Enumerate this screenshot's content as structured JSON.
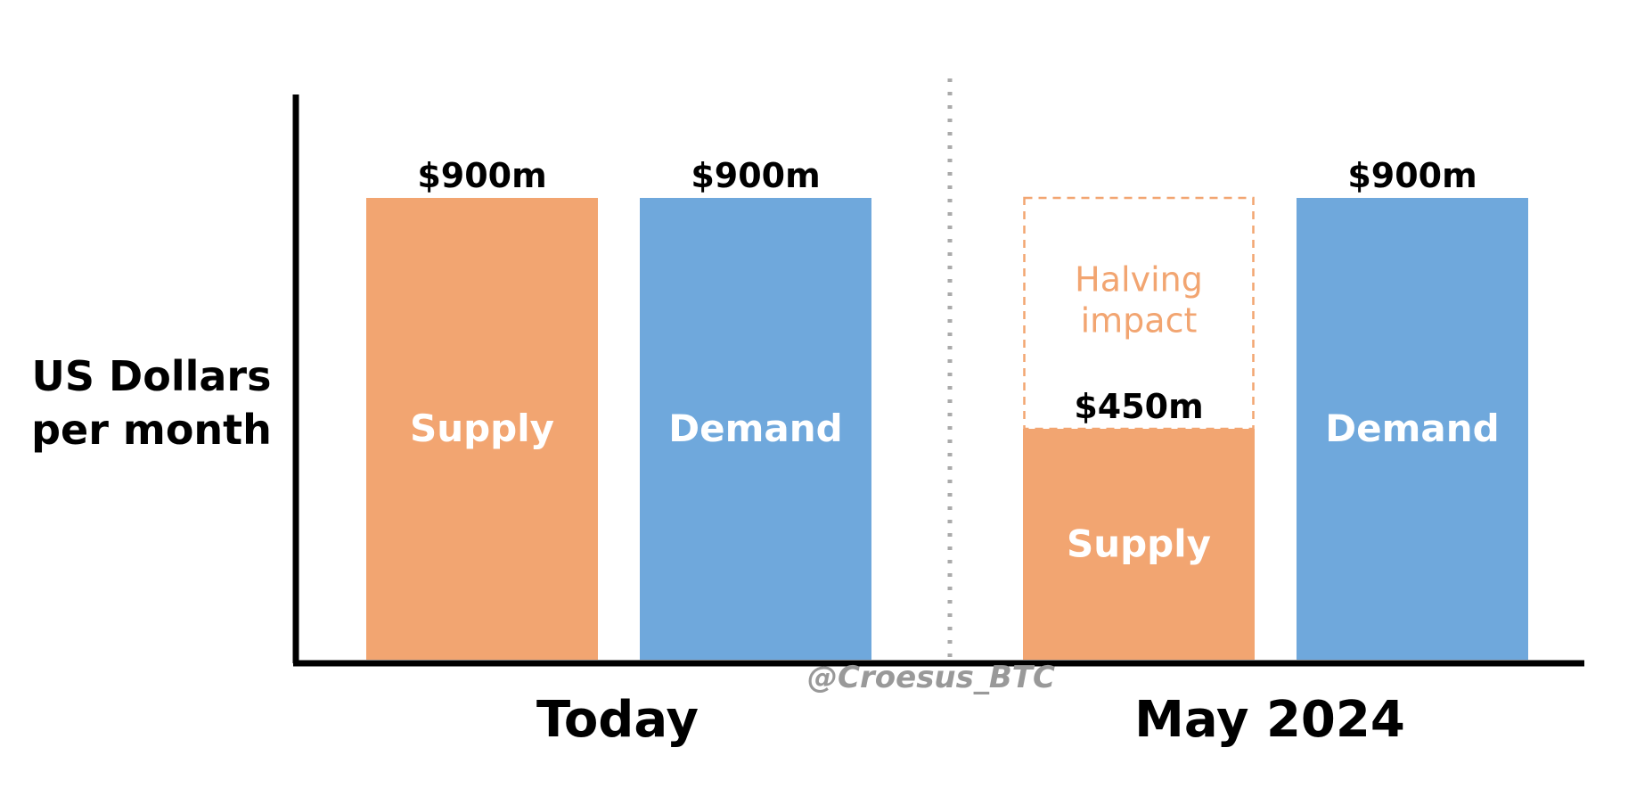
{
  "chart_data": {
    "type": "bar",
    "ylabel_lines": [
      "US Dollars",
      "per month"
    ],
    "categories": [
      "Today",
      "May 2024"
    ],
    "bars": [
      {
        "group": "Today",
        "label": "Supply",
        "value": 900,
        "value_label": "$900m",
        "color": "#F2A571"
      },
      {
        "group": "Today",
        "label": "Demand",
        "value": 900,
        "value_label": "$900m",
        "color": "#6FA8DC"
      },
      {
        "group": "May 2024",
        "label": "Supply",
        "value": 450,
        "value_label": "$450m",
        "color": "#F2A571",
        "annotation": {
          "text_lines": [
            "Halving",
            "impact"
          ],
          "value": 900,
          "color": "#F2A571"
        }
      },
      {
        "group": "May 2024",
        "label": "Demand",
        "value": 900,
        "value_label": "$900m",
        "color": "#6FA8DC"
      }
    ],
    "ylim": [
      0,
      1000
    ],
    "grid": false,
    "legend": "none"
  },
  "watermark": "@Croesus_BTC",
  "colors": {
    "supply": "#F2A571",
    "demand": "#6FA8DC",
    "axis": "#000000",
    "divider": "#aaaaaa",
    "watermark": "#999999"
  }
}
